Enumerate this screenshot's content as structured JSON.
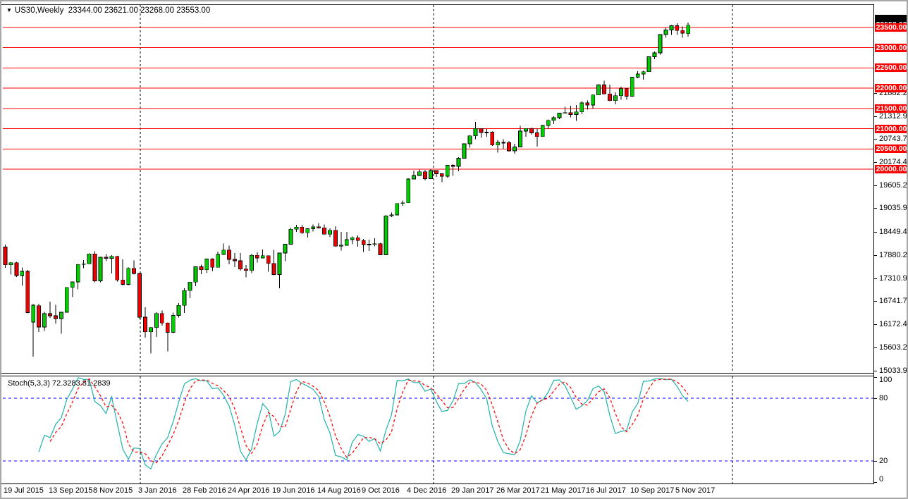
{
  "window": {
    "dropdown_icon": "▼",
    "title_symbol": "US30,Weekly",
    "title_ohlc": "23344.00 23621.00 23268.00 23553.00"
  },
  "colors": {
    "background": "#ffffff",
    "bull_candle": "#00cd00",
    "bear_candle": "#ee0000",
    "candle_outline": "#000000",
    "wick": "#000000",
    "level_line": "#ff0000",
    "level_badge_bg": "#ff0000",
    "level_badge_text": "#ffffff",
    "current_price_badge_bg": "#000000",
    "stoch_main": "#20b2aa",
    "stoch_signal": "#ff0000",
    "stoch_level": "#0000ff",
    "separator": "#000000",
    "axis_text": "#000000"
  },
  "chart_data": {
    "type": "candlestick",
    "symbol": "US30",
    "timeframe": "Weekly",
    "title": "US30,Weekly",
    "last_bar": {
      "open": 23344.0,
      "high": 23621.0,
      "low": 23268.0,
      "close": 23553.0
    },
    "price_axis": {
      "visible_range": [
        14960,
        24100
      ],
      "scale_labels": [
        21882.2,
        21312.95,
        20743.7,
        20174.45,
        19605.2,
        19035.95,
        18449.45,
        17880.2,
        17310.95,
        16741.7,
        16172.45,
        15603.2,
        15033.95
      ],
      "current_close": 23553.0
    },
    "horizontal_levels": [
      23500.0,
      23000.0,
      22500.0,
      22000.0,
      21500.0,
      21000.0,
      20500.0,
      20000.0
    ],
    "year_separators_x": [
      197,
      613,
      1037
    ],
    "time_axis": {
      "labels": [
        {
          "text": "19 Jul 2015",
          "candle_index": 0
        },
        {
          "text": "13 Sep 2015",
          "candle_index": 8
        },
        {
          "text": "8 Nov 2015",
          "candle_index": 16
        },
        {
          "text": "3 Jan 2016",
          "candle_index": 24
        },
        {
          "text": "28 Feb 2016",
          "candle_index": 32
        },
        {
          "text": "24 Apr 2016",
          "candle_index": 40
        },
        {
          "text": "19 Jun 2016",
          "candle_index": 48
        },
        {
          "text": "14 Aug 2016",
          "candle_index": 56
        },
        {
          "text": "9 Oct 2016",
          "candle_index": 64
        },
        {
          "text": "4 Dec 2016",
          "candle_index": 72
        },
        {
          "text": "29 Jan 2017",
          "candle_index": 80
        },
        {
          "text": "26 Mar 2017",
          "candle_index": 88
        },
        {
          "text": "21 May 2017",
          "candle_index": 96
        },
        {
          "text": "16 Jul 2017",
          "candle_index": 104
        },
        {
          "text": "10 Sep 2017",
          "candle_index": 112
        },
        {
          "text": "5 Nov 2017",
          "candle_index": 120
        }
      ]
    },
    "candles": [
      [
        18080,
        18137,
        17565,
        17640
      ],
      [
        17640,
        17708,
        17399,
        17690
      ],
      [
        17690,
        17710,
        17340,
        17373
      ],
      [
        17373,
        17571,
        17125,
        17477
      ],
      [
        17477,
        17511,
        16447,
        16460
      ],
      [
        16225,
        16670,
        15370,
        16643
      ],
      [
        16630,
        16675,
        15980,
        16102
      ],
      [
        16102,
        16482,
        16010,
        16433
      ],
      [
        16433,
        16734,
        16330,
        16385
      ],
      [
        16385,
        16650,
        16190,
        16315
      ],
      [
        16315,
        16472,
        15942,
        16472
      ],
      [
        16472,
        17084,
        16460,
        17084
      ],
      [
        17084,
        17230,
        16841,
        17216
      ],
      [
        17216,
        17660,
        17037,
        17647
      ],
      [
        17647,
        17755,
        17555,
        17664
      ],
      [
        17664,
        17920,
        17650,
        17910
      ],
      [
        17910,
        17977,
        17210,
        17245
      ],
      [
        17245,
        17830,
        17210,
        17824
      ],
      [
        17824,
        17905,
        17731,
        17798
      ],
      [
        17798,
        17880,
        17425,
        17848
      ],
      [
        17848,
        17860,
        17230,
        17265
      ],
      [
        17265,
        17774,
        17128,
        17155
      ],
      [
        17155,
        17580,
        17130,
        17552
      ],
      [
        17552,
        17750,
        17400,
        17425
      ],
      [
        17425,
        17430,
        16314,
        16346
      ],
      [
        16346,
        16593,
        15842,
        15988
      ],
      [
        15988,
        16107,
        15450,
        16093
      ],
      [
        16093,
        16466,
        15864,
        16440
      ],
      [
        16440,
        16511,
        16141,
        16205
      ],
      [
        16205,
        16221,
        15503,
        15973
      ],
      [
        15973,
        16460,
        15960,
        16392
      ],
      [
        16392,
        16697,
        16335,
        16640
      ],
      [
        16640,
        17062,
        16450,
        17006
      ],
      [
        17006,
        17220,
        16821,
        17213
      ],
      [
        17213,
        17602,
        17111,
        17590
      ],
      [
        17590,
        17640,
        17410,
        17516
      ],
      [
        17516,
        17790,
        17437,
        17780
      ],
      [
        17780,
        17800,
        17484,
        17577
      ],
      [
        17577,
        17962,
        17570,
        17897
      ],
      [
        17897,
        18167,
        17890,
        18004
      ],
      [
        18004,
        18112,
        17651,
        17774
      ],
      [
        17774,
        17928,
        17580,
        17740
      ],
      [
        17740,
        17934,
        17500,
        17535
      ],
      [
        17535,
        17636,
        17331,
        17500
      ],
      [
        17500,
        17910,
        17437,
        17873
      ],
      [
        17873,
        17949,
        17697,
        17807
      ],
      [
        17807,
        18016,
        17800,
        17865
      ],
      [
        17865,
        17870,
        17471,
        17675
      ],
      [
        17675,
        18011,
        17380,
        17400
      ],
      [
        17400,
        17940,
        17063,
        17930
      ],
      [
        17930,
        18158,
        17731,
        18147
      ],
      [
        18147,
        18557,
        18140,
        18516
      ],
      [
        18516,
        18622,
        18453,
        18571
      ],
      [
        18571,
        18622,
        18404,
        18432
      ],
      [
        18432,
        18543,
        18313,
        18530
      ],
      [
        18530,
        18638,
        18463,
        18576
      ],
      [
        18576,
        18668,
        18529,
        18552
      ],
      [
        18552,
        18637,
        18384,
        18395
      ],
      [
        18395,
        18542,
        18326,
        18491
      ],
      [
        18491,
        18590,
        18085,
        18100
      ],
      [
        18100,
        18449,
        17992,
        18123
      ],
      [
        18123,
        18449,
        18115,
        18261
      ],
      [
        18261,
        18339,
        18150,
        18308
      ],
      [
        18308,
        18366,
        18086,
        18240
      ],
      [
        18240,
        18279,
        17959,
        18138
      ],
      [
        18138,
        18262,
        17985,
        18146
      ],
      [
        18146,
        18292,
        18099,
        18161
      ],
      [
        18161,
        18183,
        17883,
        17888
      ],
      [
        17888,
        18873,
        17880,
        18847
      ],
      [
        18847,
        18934,
        18815,
        18868
      ],
      [
        18868,
        19160,
        18860,
        19152
      ],
      [
        19152,
        19225,
        19097,
        19170
      ],
      [
        19170,
        19770,
        19165,
        19757
      ],
      [
        19757,
        19966,
        19750,
        19843
      ],
      [
        19843,
        19987,
        19835,
        19934
      ],
      [
        19934,
        19980,
        19718,
        19763
      ],
      [
        19763,
        19999,
        19755,
        19964
      ],
      [
        19964,
        19973,
        19811,
        19886
      ],
      [
        19886,
        19900,
        19678,
        19827
      ],
      [
        19827,
        20101,
        19784,
        20094
      ],
      [
        20094,
        20125,
        19831,
        20071
      ],
      [
        20071,
        20298,
        19946,
        20269
      ],
      [
        20269,
        20639,
        20260,
        20624
      ],
      [
        20624,
        20840,
        20529,
        20822
      ],
      [
        20822,
        21169,
        20737,
        21006
      ],
      [
        21006,
        21010,
        20777,
        20903
      ],
      [
        20903,
        20988,
        20804,
        20914
      ],
      [
        20914,
        20928,
        20576,
        20597
      ],
      [
        20597,
        20722,
        20413,
        20663
      ],
      [
        20663,
        20736,
        20505,
        20656
      ],
      [
        20656,
        20700,
        20439,
        20453
      ],
      [
        20453,
        20630,
        20379,
        20548
      ],
      [
        20548,
        21071,
        20540,
        20940
      ],
      [
        20940,
        21009,
        20796,
        21006
      ],
      [
        21006,
        21030,
        20853,
        20896
      ],
      [
        20896,
        21000,
        20553,
        20804
      ],
      [
        20804,
        21089,
        20800,
        21080
      ],
      [
        21080,
        21225,
        20994,
        21206
      ],
      [
        21206,
        21305,
        21113,
        21271
      ],
      [
        21271,
        21391,
        21235,
        21384
      ],
      [
        21384,
        21535,
        21377,
        21394
      ],
      [
        21394,
        21562,
        21279,
        21349
      ],
      [
        21349,
        21580,
        21193,
        21414
      ],
      [
        21414,
        21681,
        21359,
        21637
      ],
      [
        21637,
        21692,
        21471,
        21580
      ],
      [
        21580,
        21841,
        21493,
        21830
      ],
      [
        21830,
        22092,
        21825,
        22080
      ],
      [
        22080,
        22179,
        21844,
        21858
      ],
      [
        21858,
        22086,
        21675,
        21690
      ],
      [
        21690,
        21899,
        21600,
        21814
      ],
      [
        21814,
        22039,
        21709,
        21988
      ],
      [
        21988,
        21998,
        21709,
        21798
      ],
      [
        21798,
        22275,
        21790,
        22268
      ],
      [
        22268,
        22419,
        22246,
        22350
      ],
      [
        22350,
        22423,
        22213,
        22405
      ],
      [
        22405,
        22777,
        22400,
        22774
      ],
      [
        22774,
        22905,
        22715,
        22872
      ],
      [
        22872,
        23328,
        22829,
        23320
      ],
      [
        23320,
        23485,
        23242,
        23434
      ],
      [
        23434,
        23557,
        23310,
        23539
      ],
      [
        23539,
        23602,
        23311,
        23422
      ],
      [
        23422,
        23522,
        23242,
        23358
      ],
      [
        23344,
        23621,
        23268,
        23553
      ]
    ],
    "indicator": {
      "type": "line",
      "name": "Stochastic",
      "params": [
        5,
        3,
        3
      ],
      "label": "Stoch(5,3,3) 72.3283 81.2839",
      "main_value": 72.3283,
      "signal_value": 81.2839,
      "range": [
        0,
        100
      ],
      "levels": [
        80,
        20
      ],
      "axis_labels": [
        100,
        80,
        20,
        0
      ]
    }
  }
}
